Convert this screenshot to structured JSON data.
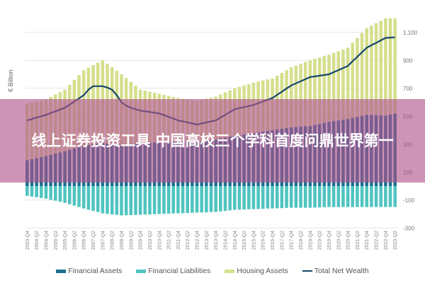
{
  "chart_data": {
    "type": "bar",
    "stacked": true,
    "ylabel": "€ Billion",
    "ylim": [
      -300,
      1200
    ],
    "yticks": [
      -300,
      -100,
      100,
      300,
      500,
      700,
      900,
      1100
    ],
    "ytick_labels": [
      "-300",
      "-100",
      "100",
      "300",
      "500",
      "700",
      "900",
      "1,100"
    ],
    "grid": true,
    "legend_position": "bottom",
    "categories": [
      "2003-Q4",
      "2004-Q1",
      "2004-Q2",
      "2004-Q3",
      "2004-Q4",
      "2005-Q1",
      "2005-Q2",
      "2005-Q3",
      "2005-Q4",
      "2006-Q1",
      "2006-Q2",
      "2006-Q3",
      "2006-Q4",
      "2007-Q1",
      "2007-Q2",
      "2007-Q3",
      "2007-Q4",
      "2008-Q1",
      "2008-Q2",
      "2008-Q3",
      "2008-Q4",
      "2009-Q1",
      "2009-Q2",
      "2009-Q3",
      "2009-Q4",
      "2010-Q1",
      "2010-Q2",
      "2010-Q3",
      "2010-Q4",
      "2011-Q1",
      "2011-Q2",
      "2011-Q3",
      "2011-Q4",
      "2012-Q1",
      "2012-Q2",
      "2012-Q3",
      "2012-Q4",
      "2013-Q1",
      "2013-Q2",
      "2013-Q3",
      "2013-Q4",
      "2014-Q1",
      "2014-Q2",
      "2014-Q3",
      "2014-Q4",
      "2015-Q1",
      "2015-Q2",
      "2015-Q3",
      "2015-Q4",
      "2016-Q1",
      "2016-Q2",
      "2016-Q3",
      "2016-Q4",
      "2017-Q1",
      "2017-Q2",
      "2017-Q3",
      "2017-Q4",
      "2018-Q1",
      "2018-Q2",
      "2018-Q3",
      "2018-Q4",
      "2019-Q1",
      "2019-Q2",
      "2019-Q3",
      "2019-Q4",
      "2020-Q1",
      "2020-Q2",
      "2020-Q3",
      "2020-Q4",
      "2021-Q1",
      "2021-Q2",
      "2021-Q3",
      "2021-Q4",
      "2022-Q1",
      "2022-Q2",
      "2022-Q3",
      "2022-Q4",
      "2023-Q1",
      "2023-Q2"
    ],
    "xtick_labels": [
      "2003-Q4",
      "2004-Q2",
      "2004-Q4",
      "2005-Q2",
      "2005-Q4",
      "2006-Q2",
      "2006-Q4",
      "2007-Q2",
      "2007-Q4",
      "2008-Q2",
      "2008-Q4",
      "2009-Q2",
      "2009-Q4",
      "2010-Q2",
      "2010-Q4",
      "2011-Q2",
      "2011-Q4",
      "2012-Q2",
      "2012-Q4",
      "2013-Q2",
      "2013-Q4",
      "2014-Q2",
      "2014-Q4",
      "2015-Q2",
      "2015-Q4",
      "2016-Q2",
      "2016-Q4",
      "2017-Q2",
      "2017-Q4",
      "2018-Q2",
      "2018-Q4",
      "2019-Q2",
      "2019-Q4",
      "2020-Q2",
      "2020-Q4",
      "2021-Q2",
      "2021-Q4",
      "2022-Q2",
      "2022-Q4",
      "2023-Q2"
    ],
    "series": [
      {
        "name": "Financial Assets",
        "kind": "bar",
        "color": "#1d6f92",
        "values": [
          185,
          193,
          200,
          208,
          215,
          224,
          233,
          241,
          250,
          260,
          270,
          280,
          290,
          295,
          300,
          305,
          310,
          305,
          300,
          295,
          290,
          294,
          298,
          301,
          305,
          308,
          310,
          313,
          315,
          316,
          318,
          319,
          320,
          320,
          320,
          320,
          320,
          324,
          328,
          331,
          335,
          341,
          348,
          354,
          360,
          365,
          370,
          375,
          380,
          385,
          390,
          395,
          400,
          405,
          410,
          415,
          420,
          423,
          425,
          428,
          430,
          438,
          445,
          453,
          460,
          465,
          470,
          475,
          480,
          488,
          495,
          503,
          510,
          509,
          508,
          506,
          505,
          513,
          520
        ]
      },
      {
        "name": "Financial Liabilities",
        "kind": "bar",
        "color": "#4fc4c0",
        "values": [
          -70,
          -75,
          -80,
          -85,
          -90,
          -98,
          -105,
          -113,
          -120,
          -130,
          -140,
          -150,
          -160,
          -169,
          -178,
          -186,
          -195,
          -199,
          -203,
          -206,
          -210,
          -209,
          -208,
          -206,
          -205,
          -204,
          -203,
          -201,
          -200,
          -199,
          -198,
          -196,
          -195,
          -194,
          -193,
          -191,
          -190,
          -189,
          -188,
          -186,
          -185,
          -181,
          -178,
          -174,
          -170,
          -169,
          -168,
          -166,
          -165,
          -164,
          -163,
          -161,
          -160,
          -159,
          -158,
          -156,
          -155,
          -155,
          -155,
          -155,
          -155,
          -154,
          -153,
          -151,
          -150,
          -150,
          -150,
          -150,
          -150,
          -150,
          -150,
          -150,
          -150,
          -150,
          -150,
          -150,
          -150,
          -150,
          -150
        ]
      },
      {
        "name": "Housing Assets",
        "kind": "bar",
        "color": "#d5df8c",
        "values": [
          405,
          405,
          405,
          405,
          405,
          414,
          423,
          431,
          440,
          465,
          490,
          515,
          540,
          553,
          565,
          578,
          590,
          570,
          550,
          530,
          510,
          479,
          448,
          416,
          385,
          375,
          365,
          355,
          345,
          336,
          328,
          319,
          310,
          305,
          300,
          295,
          290,
          294,
          298,
          301,
          305,
          314,
          323,
          331,
          340,
          345,
          350,
          355,
          360,
          363,
          365,
          368,
          370,
          385,
          400,
          415,
          430,
          440,
          450,
          460,
          470,
          473,
          475,
          478,
          480,
          488,
          495,
          503,
          510,
          538,
          565,
          593,
          620,
          639,
          658,
          676,
          695,
          688,
          680
        ]
      },
      {
        "name": "Total Net Wealth",
        "kind": "line",
        "color": "#17486a",
        "values": [
          470,
          480,
          490,
          500,
          510,
          523,
          535,
          548,
          560,
          583,
          605,
          628,
          650,
          690,
          715,
          715,
          715,
          705,
          690,
          650,
          600,
          575,
          560,
          550,
          540,
          535,
          530,
          525,
          520,
          508,
          495,
          483,
          470,
          463,
          455,
          448,
          440,
          448,
          455,
          463,
          470,
          490,
          510,
          530,
          550,
          558,
          565,
          573,
          580,
          593,
          605,
          618,
          630,
          653,
          675,
          698,
          720,
          735,
          750,
          765,
          780,
          785,
          790,
          795,
          800,
          815,
          830,
          845,
          860,
          893,
          925,
          958,
          990,
          1008,
          1025,
          1043,
          1060,
          1063,
          1065
        ]
      }
    ]
  },
  "legend": {
    "items": [
      "Financial Assets",
      "Financial Liabilities",
      "Housing Assets",
      "Total Net Wealth"
    ]
  },
  "overlay": {
    "banner_text": "线上证券投资工具 中国高校三个学科首度问鼎世界第一",
    "color": "#b0528c"
  }
}
